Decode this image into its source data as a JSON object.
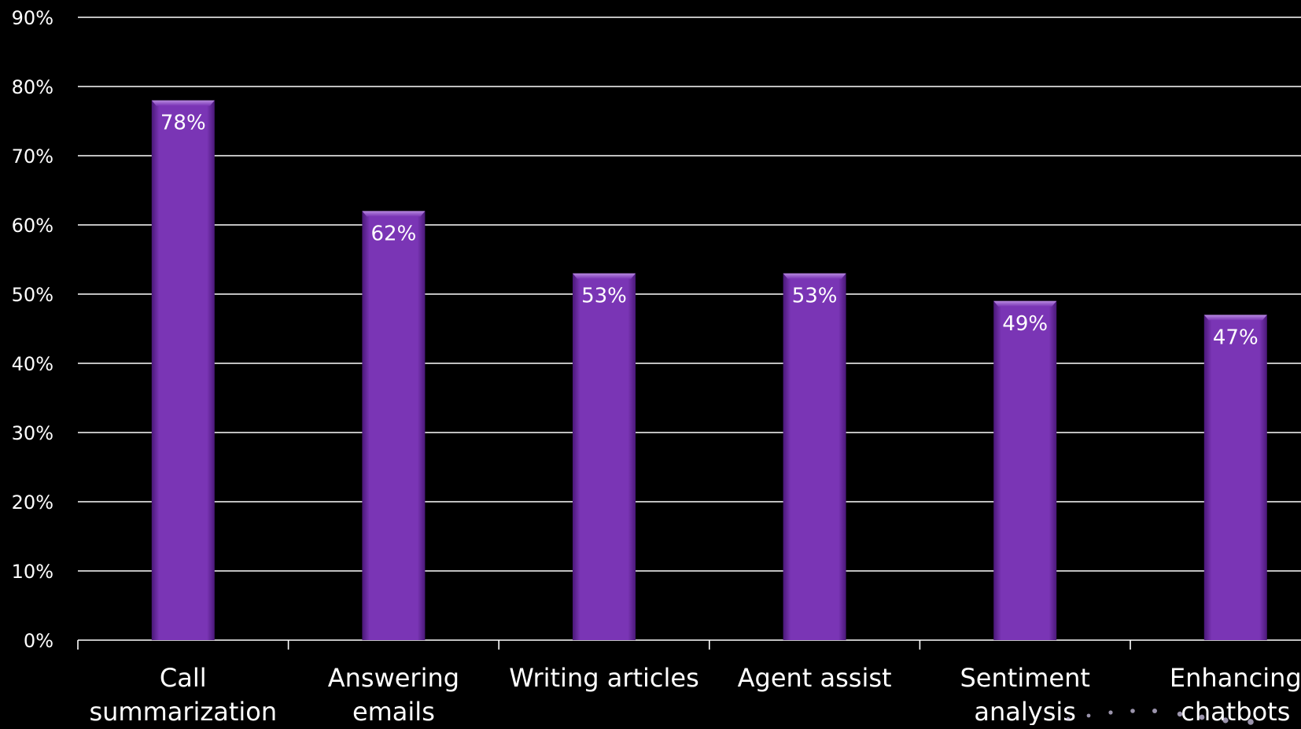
{
  "chart_data": {
    "type": "bar",
    "categories": [
      [
        "Call",
        "summarization"
      ],
      [
        "Answering",
        "emails"
      ],
      [
        "Writing articles"
      ],
      [
        "Agent assist"
      ],
      [
        "Sentiment",
        "analysis"
      ],
      [
        "Enhancing",
        "chatbots"
      ]
    ],
    "values": [
      78,
      62,
      53,
      53,
      49,
      47
    ],
    "data_labels": [
      "78%",
      "62%",
      "53%",
      "53%",
      "49%",
      "47%"
    ],
    "yticks": [
      "0%",
      "10%",
      "20%",
      "30%",
      "40%",
      "50%",
      "60%",
      "70%",
      "80%",
      "90%"
    ],
    "ylim": [
      0,
      90
    ],
    "grid": true,
    "legend": "none",
    "title": "",
    "xlabel": "",
    "ylabel": ""
  },
  "colors": {
    "background": "#000000",
    "bar": "#7a35b5",
    "bar_edge": "#5a1f8f",
    "text": "#ffffff",
    "grid": "#ffffff"
  }
}
